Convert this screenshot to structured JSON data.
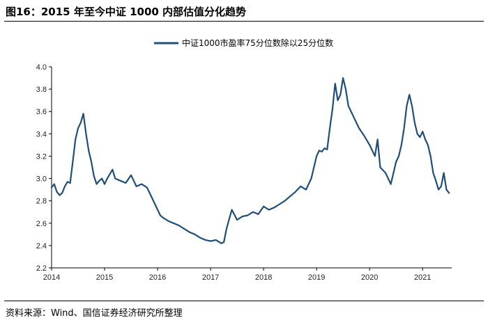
{
  "figure": {
    "title": "图16：2015 年至今中证 1000 内部估值分化趋势",
    "source": "资料来源：Wind、国信证券经济研究所整理"
  },
  "chart_data": {
    "type": "line",
    "title": "",
    "xlabel": "",
    "ylabel": "",
    "legend": {
      "position": "top-center"
    },
    "grid": false,
    "xlim": [
      2014.0,
      2021.55
    ],
    "ylim": [
      2.2,
      4.0
    ],
    "x_ticks": [
      "2014",
      "2015",
      "2016",
      "2017",
      "2018",
      "2019",
      "2020",
      "2021"
    ],
    "y_ticks": [
      "2.2",
      "2.4",
      "2.6",
      "2.8",
      "3.0",
      "3.2",
      "3.4",
      "3.6",
      "3.8",
      "4.0"
    ],
    "colors": {
      "line": "#1f4e79",
      "axis": "#000000"
    },
    "series": [
      {
        "name": "中证1000市盈率75分位数除以25分位数",
        "x": [
          2014.0,
          2014.05,
          2014.1,
          2014.15,
          2014.2,
          2014.25,
          2014.3,
          2014.35,
          2014.4,
          2014.45,
          2014.5,
          2014.55,
          2014.6,
          2014.65,
          2014.7,
          2014.75,
          2014.8,
          2014.85,
          2014.9,
          2014.95,
          2015.0,
          2015.05,
          2015.1,
          2015.15,
          2015.2,
          2015.3,
          2015.4,
          2015.5,
          2015.6,
          2015.7,
          2015.8,
          2015.9,
          2016.0,
          2016.05,
          2016.1,
          2016.2,
          2016.3,
          2016.4,
          2016.5,
          2016.6,
          2016.7,
          2016.8,
          2016.9,
          2017.0,
          2017.1,
          2017.2,
          2017.25,
          2017.3,
          2017.4,
          2017.5,
          2017.6,
          2017.7,
          2017.8,
          2017.9,
          2018.0,
          2018.1,
          2018.2,
          2018.3,
          2018.4,
          2018.5,
          2018.6,
          2018.7,
          2018.8,
          2018.9,
          2019.0,
          2019.05,
          2019.1,
          2019.15,
          2019.2,
          2019.25,
          2019.3,
          2019.35,
          2019.4,
          2019.45,
          2019.5,
          2019.55,
          2019.6,
          2019.7,
          2019.8,
          2019.9,
          2020.0,
          2020.05,
          2020.1,
          2020.15,
          2020.2,
          2020.3,
          2020.4,
          2020.5,
          2020.55,
          2020.6,
          2020.65,
          2020.7,
          2020.75,
          2020.8,
          2020.85,
          2020.9,
          2020.95,
          2021.0,
          2021.05,
          2021.1,
          2021.15,
          2021.2,
          2021.25,
          2021.3,
          2021.35,
          2021.4,
          2021.45,
          2021.5
        ],
        "values": [
          2.92,
          2.95,
          2.88,
          2.85,
          2.87,
          2.93,
          2.97,
          2.96,
          3.15,
          3.35,
          3.45,
          3.5,
          3.58,
          3.4,
          3.25,
          3.15,
          3.02,
          2.95,
          2.98,
          3.0,
          2.95,
          3.0,
          3.04,
          3.08,
          3.0,
          2.98,
          2.96,
          3.03,
          2.93,
          2.95,
          2.92,
          2.82,
          2.72,
          2.67,
          2.65,
          2.62,
          2.6,
          2.58,
          2.55,
          2.52,
          2.5,
          2.47,
          2.45,
          2.44,
          2.45,
          2.42,
          2.43,
          2.55,
          2.72,
          2.63,
          2.66,
          2.67,
          2.7,
          2.68,
          2.75,
          2.72,
          2.74,
          2.77,
          2.8,
          2.84,
          2.88,
          2.93,
          2.9,
          3.0,
          3.2,
          3.25,
          3.24,
          3.27,
          3.26,
          3.45,
          3.62,
          3.85,
          3.7,
          3.75,
          3.9,
          3.8,
          3.65,
          3.55,
          3.45,
          3.38,
          3.3,
          3.25,
          3.2,
          3.35,
          3.1,
          3.05,
          2.95,
          3.15,
          3.2,
          3.3,
          3.45,
          3.65,
          3.75,
          3.65,
          3.5,
          3.4,
          3.37,
          3.42,
          3.35,
          3.3,
          3.2,
          3.05,
          2.98,
          2.9,
          2.93,
          3.05,
          2.9,
          2.87
        ]
      }
    ]
  }
}
